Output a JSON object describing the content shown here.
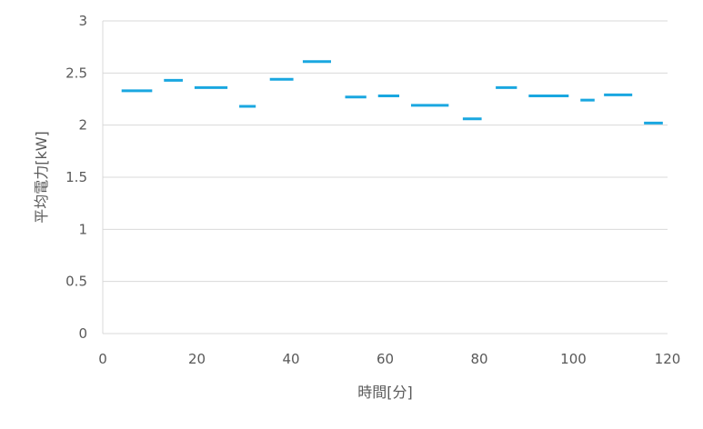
{
  "chart_data": {
    "type": "line",
    "title": "",
    "xlabel": "時間[分]",
    "ylabel": "平均電力[kW]",
    "xlim": [
      0,
      120
    ],
    "ylim": [
      0,
      3
    ],
    "x_ticks": [
      "0",
      "20",
      "40",
      "60",
      "80",
      "100",
      "120"
    ],
    "y_ticks": [
      "0",
      "0.5",
      "1",
      "1.5",
      "2",
      "2.5",
      "3"
    ],
    "grid": true,
    "legend": "none",
    "series_color": "#1aa7e0",
    "segments": [
      {
        "x_start": 4,
        "x_end": 10.5,
        "y": 2.33
      },
      {
        "x_start": 13,
        "x_end": 17,
        "y": 2.43
      },
      {
        "x_start": 19.5,
        "x_end": 26.5,
        "y": 2.36
      },
      {
        "x_start": 29,
        "x_end": 32.5,
        "y": 2.18
      },
      {
        "x_start": 35.5,
        "x_end": 40.5,
        "y": 2.44
      },
      {
        "x_start": 42.5,
        "x_end": 48.5,
        "y": 2.61
      },
      {
        "x_start": 51.5,
        "x_end": 56,
        "y": 2.27
      },
      {
        "x_start": 58.5,
        "x_end": 63,
        "y": 2.28
      },
      {
        "x_start": 65.5,
        "x_end": 73.5,
        "y": 2.19
      },
      {
        "x_start": 76.5,
        "x_end": 80.5,
        "y": 2.06
      },
      {
        "x_start": 83.5,
        "x_end": 88,
        "y": 2.36
      },
      {
        "x_start": 90.5,
        "x_end": 99,
        "y": 2.28
      },
      {
        "x_start": 101.5,
        "x_end": 104.5,
        "y": 2.24
      },
      {
        "x_start": 106.5,
        "x_end": 112.5,
        "y": 2.29
      },
      {
        "x_start": 115,
        "x_end": 119,
        "y": 2.02
      }
    ]
  }
}
